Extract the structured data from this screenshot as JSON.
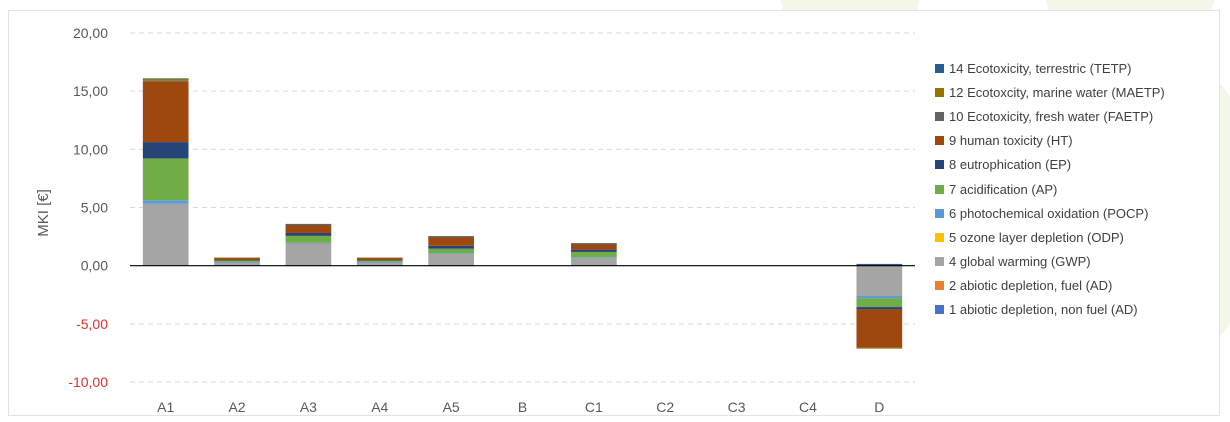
{
  "chart_data": {
    "type": "bar",
    "stacked": true,
    "categories": [
      "A1",
      "A2",
      "A3",
      "A4",
      "A5",
      "B",
      "C1",
      "C2",
      "C3",
      "C4",
      "D"
    ],
    "title": "",
    "xlabel": "",
    "ylabel": "MKI [€]",
    "ylim": [
      -10,
      20
    ],
    "yticks": [
      {
        "value": 20,
        "label": "20,00"
      },
      {
        "value": 15,
        "label": "15,00"
      },
      {
        "value": 10,
        "label": "10,00"
      },
      {
        "value": 5,
        "label": "5,00"
      },
      {
        "value": 0,
        "label": "0,00"
      },
      {
        "value": -5,
        "label": "-5,00"
      },
      {
        "value": -10,
        "label": "-10,00"
      }
    ],
    "grid": true,
    "legend_position": "right",
    "negative_tick_color": "#e0302a",
    "positive_tick_color": "#595959",
    "series": [
      {
        "name": "1 abiotic depletion, non fuel (AD)",
        "color": "#4472c4",
        "values": [
          0.02,
          0,
          0.01,
          0,
          0.01,
          0,
          0,
          0,
          0,
          0,
          -0.01
        ]
      },
      {
        "name": "2 abiotic depletion, fuel (AD)",
        "color": "#ed7d31",
        "values": [
          0,
          0,
          0,
          0,
          0,
          0,
          0,
          0,
          0,
          0,
          0
        ]
      },
      {
        "name": "4 global warming (GWP)",
        "color": "#a5a5a5",
        "values": [
          5.3,
          0.3,
          1.9,
          0.3,
          1.0,
          0,
          0.7,
          0,
          0,
          0,
          -2.6
        ]
      },
      {
        "name": "5 ozone layer depletion (ODP)",
        "color": "#ffc000",
        "values": [
          0,
          0,
          0,
          0,
          0,
          0,
          0,
          0,
          0,
          0,
          0
        ]
      },
      {
        "name": "6 photochemical oxidation (POCP)",
        "color": "#5b9bd5",
        "values": [
          0.3,
          0.02,
          0.05,
          0.02,
          0.05,
          0,
          0.03,
          0,
          0,
          0,
          -0.2
        ]
      },
      {
        "name": "7 acidification (AP)",
        "color": "#70ad47",
        "values": [
          3.6,
          0.12,
          0.6,
          0.12,
          0.4,
          0,
          0.45,
          0,
          0,
          0,
          -0.75
        ]
      },
      {
        "name": "8 eutrophication (EP)",
        "color": "#264478",
        "values": [
          1.4,
          0.03,
          0.25,
          0.03,
          0.25,
          0,
          0.2,
          0,
          0,
          0,
          -0.2
        ]
      },
      {
        "name": "9 human toxicity (HT)",
        "color": "#9e480e",
        "values": [
          5.2,
          0.2,
          0.7,
          0.2,
          0.75,
          0,
          0.5,
          0,
          0,
          0,
          -3.3
        ]
      },
      {
        "name": "10 Ecotoxicity, fresh water (FAETP)",
        "color": "#636363",
        "values": [
          0.08,
          0.01,
          0.02,
          0.01,
          0.02,
          0,
          0.01,
          0,
          0,
          0,
          -0.02
        ]
      },
      {
        "name": "12 Ecotoxcity, marine water (MAETP)",
        "color": "#997300",
        "values": [
          0.15,
          0.01,
          0.05,
          0.01,
          0.05,
          0,
          0.03,
          0,
          0,
          0,
          -0.03
        ]
      },
      {
        "name": "14 Ecotoxicity, terrestric (TETP)",
        "color": "#255e91",
        "values": [
          0.05,
          0,
          0.01,
          0,
          0.01,
          0,
          0.01,
          0,
          0,
          0,
          0.15
        ]
      }
    ]
  }
}
